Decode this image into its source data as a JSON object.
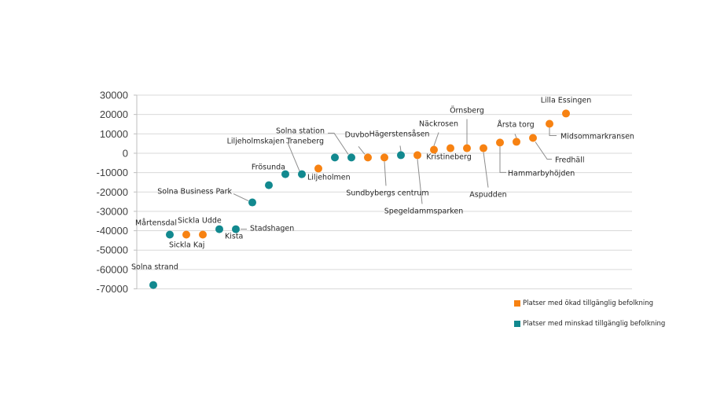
{
  "chart_data": {
    "type": "scatter",
    "title": "",
    "xlabel": "",
    "ylabel": "",
    "ylim": [
      -70000,
      30000
    ],
    "yticks": [
      30000,
      20000,
      10000,
      0,
      -10000,
      -20000,
      -30000,
      -40000,
      -50000,
      -60000,
      -70000
    ],
    "ytick_labels": [
      "30000",
      "20000",
      "10000",
      "0",
      "-10000",
      "-20000",
      "-30000",
      "-40000",
      "-50000",
      "-60000",
      "-70000"
    ],
    "grid": true,
    "legend_position": "bottom-right",
    "colors": {
      "increase": "#F78212",
      "decrease": "#12898F"
    },
    "series": [
      {
        "key": "increase",
        "name": "Platser med ökad tillgänglig befolkning"
      },
      {
        "key": "decrease",
        "name": "Platser med minskad tillgänglig befolkning"
      }
    ],
    "points": [
      {
        "label": "Solna strand",
        "series": "decrease",
        "value": -68000
      },
      {
        "label": "Mårtensdal",
        "series": "decrease",
        "value": -42000
      },
      {
        "label": "Sickla Kaj",
        "series": "increase",
        "value": -42000
      },
      {
        "label": "Sickla Udde",
        "series": "increase",
        "value": -42000
      },
      {
        "label": "Kista",
        "series": "decrease",
        "value": -39200
      },
      {
        "label": "Stadshagen",
        "series": "decrease",
        "value": -39200
      },
      {
        "label": "Solna Business Park",
        "series": "decrease",
        "value": -25400
      },
      {
        "label": "",
        "series": "decrease",
        "value": -16500
      },
      {
        "label": "Frösunda",
        "series": "decrease",
        "value": -10800
      },
      {
        "label": "Liljeholmskajen",
        "series": "decrease",
        "value": -10800
      },
      {
        "label": "Liljeholmen",
        "series": "increase",
        "value": -7900
      },
      {
        "label": "Traneberg",
        "series": "decrease",
        "value": -2200
      },
      {
        "label": "Solna station",
        "series": "decrease",
        "value": -2200
      },
      {
        "label": "Duvbo",
        "series": "increase",
        "value": -2200
      },
      {
        "label": "Sundbybergs centrum",
        "series": "increase",
        "value": -2200
      },
      {
        "label": "Hägerstensåsen",
        "series": "decrease",
        "value": -1000
      },
      {
        "label": "Spegeldammsparken",
        "series": "increase",
        "value": -1000
      },
      {
        "label": "Näckrosen",
        "series": "increase",
        "value": 1800
      },
      {
        "label": "Kristineberg",
        "series": "increase",
        "value": 2600
      },
      {
        "label": "Örnsberg",
        "series": "increase",
        "value": 2600
      },
      {
        "label": "Aspudden",
        "series": "increase",
        "value": 2600
      },
      {
        "label": "Hammarbyhöjden",
        "series": "increase",
        "value": 5500
      },
      {
        "label": "Årsta torg",
        "series": "increase",
        "value": 5900
      },
      {
        "label": "Fredhäll",
        "series": "increase",
        "value": 7900
      },
      {
        "label": "Midsommarkransen",
        "series": "increase",
        "value": 15200
      },
      {
        "label": "Lilla Essingen",
        "series": "increase",
        "value": 20500
      }
    ]
  }
}
